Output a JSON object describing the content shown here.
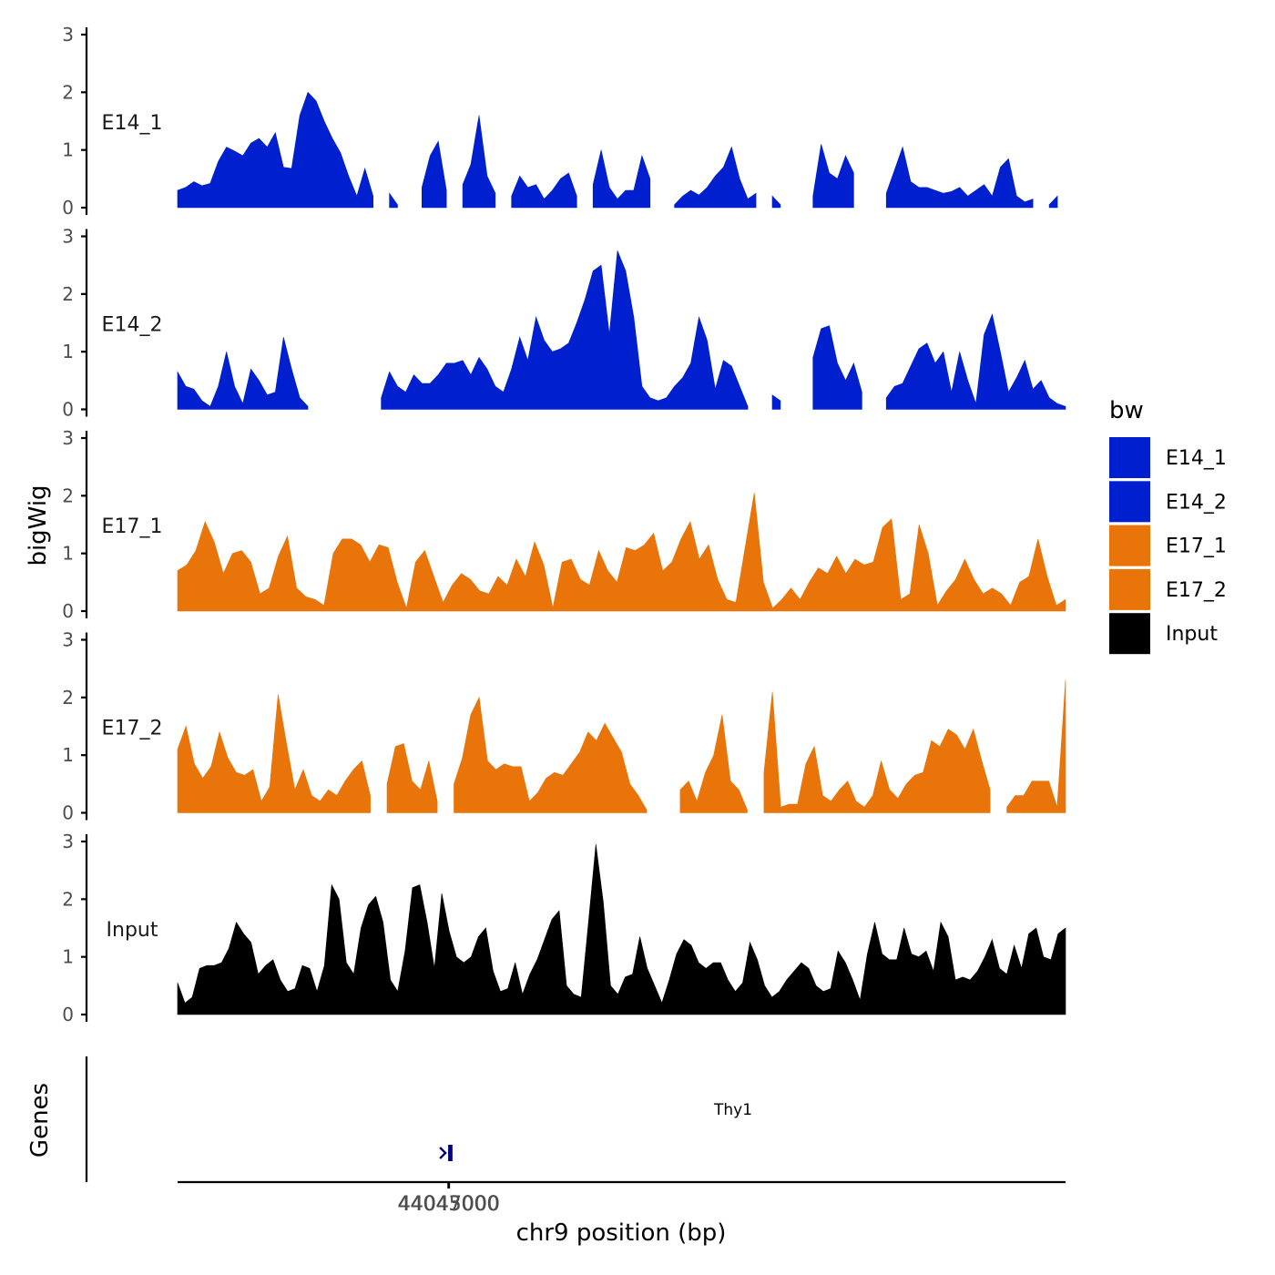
{
  "chart_data": {
    "type": "area",
    "chromosome": "chr9",
    "xlabel": "chr9 position (bp)",
    "ylabel": "bigWig",
    "genes_label": "Genes",
    "xlim": [
      42219000,
      48199000
    ],
    "ylim": [
      0,
      3
    ],
    "x_ticks": [
      {
        "value": 44043000,
        "label": "44043000"
      },
      {
        "value": 44045000,
        "label": "44045000"
      },
      {
        "value": 44047000,
        "label": "44047000"
      }
    ],
    "y_ticks": [
      {
        "value": 0,
        "label": "0"
      },
      {
        "value": 1,
        "label": "1"
      },
      {
        "value": 2,
        "label": "2"
      },
      {
        "value": 3,
        "label": "3"
      }
    ],
    "legend": {
      "title": "bw",
      "entries": [
        {
          "label": "E14_1",
          "color": "#0020D0"
        },
        {
          "label": "E14_2",
          "color": "#0020D0"
        },
        {
          "label": "E17_1",
          "color": "#E8740A"
        },
        {
          "label": "E17_2",
          "color": "#E8740A"
        },
        {
          "label": "Input",
          "color": "#000000"
        }
      ]
    },
    "series": [
      {
        "name": "E14_1",
        "color": "#0020D0",
        "x_start": 42219000,
        "x_end": 48199000,
        "values": [
          0.3,
          0.35,
          0.45,
          0.38,
          0.42,
          0.8,
          1.05,
          0.98,
          0.9,
          1.12,
          1.2,
          1.05,
          1.3,
          0.7,
          0.68,
          1.6,
          2.0,
          1.85,
          1.5,
          1.2,
          0.95,
          0.55,
          0.2,
          0.68,
          0.2,
          null,
          0.25,
          0.05,
          null,
          null,
          0.35,
          0.9,
          1.15,
          0.3,
          null,
          0.4,
          0.75,
          1.6,
          0.55,
          0.25,
          null,
          0.2,
          0.55,
          0.35,
          0.4,
          0.15,
          0.3,
          0.5,
          0.6,
          0.2,
          null,
          0.4,
          1.0,
          0.35,
          0.15,
          0.3,
          0.3,
          0.9,
          0.5,
          null,
          null,
          0.05,
          0.2,
          0.3,
          0.22,
          0.35,
          0.55,
          0.7,
          1.05,
          0.5,
          0.15,
          0.25,
          null,
          0.2,
          0.05,
          null,
          null,
          null,
          0.2,
          1.1,
          0.6,
          0.5,
          0.9,
          0.6,
          null,
          null,
          null,
          0.25,
          0.65,
          1.05,
          0.45,
          0.35,
          0.35,
          0.3,
          0.25,
          0.28,
          0.35,
          0.2,
          0.3,
          0.4,
          0.2,
          0.7,
          0.85,
          0.2,
          0.1,
          0.15,
          null,
          0.05,
          0.2,
          null
        ]
      },
      {
        "name": "E14_2",
        "color": "#0020D0",
        "x_start": 42219000,
        "x_end": 48199000,
        "values": [
          0.65,
          0.4,
          0.35,
          0.15,
          0.05,
          0.4,
          1.0,
          0.4,
          0.1,
          0.7,
          0.5,
          0.25,
          0.3,
          1.25,
          0.7,
          0.2,
          0.05,
          null,
          null,
          null,
          null,
          null,
          null,
          null,
          null,
          0.2,
          0.65,
          0.4,
          0.3,
          0.6,
          0.45,
          0.45,
          0.6,
          0.8,
          0.8,
          0.85,
          0.6,
          0.9,
          0.7,
          0.4,
          0.3,
          0.7,
          1.25,
          0.85,
          1.6,
          1.2,
          1.0,
          1.05,
          1.15,
          1.5,
          1.9,
          2.4,
          2.5,
          1.3,
          2.75,
          2.4,
          1.6,
          0.4,
          0.2,
          0.15,
          0.2,
          0.4,
          0.55,
          0.8,
          1.6,
          1.2,
          0.35,
          0.85,
          0.75,
          0.4,
          0.05,
          null,
          null,
          0.25,
          0.15,
          null,
          null,
          null,
          0.9,
          1.4,
          1.45,
          0.8,
          0.5,
          0.8,
          0.3,
          null,
          null,
          0.2,
          0.4,
          0.45,
          0.75,
          1.05,
          1.15,
          0.8,
          1.0,
          0.3,
          1.0,
          0.5,
          0.1,
          1.3,
          1.65,
          1.0,
          0.3,
          0.55,
          0.85,
          0.35,
          0.5,
          0.2,
          0.1,
          0.05
        ]
      },
      {
        "name": "E17_1",
        "color": "#E8740A",
        "x_start": 42219000,
        "x_end": 48199000,
        "values": [
          0.7,
          0.8,
          1.05,
          1.55,
          1.2,
          0.65,
          1.0,
          1.05,
          0.85,
          0.3,
          0.4,
          0.95,
          1.3,
          0.4,
          0.25,
          0.2,
          0.1,
          1.0,
          1.25,
          1.25,
          1.15,
          0.85,
          1.15,
          1.1,
          0.5,
          0.05,
          0.85,
          1.05,
          0.6,
          0.15,
          0.45,
          0.65,
          0.55,
          0.35,
          0.3,
          0.6,
          0.45,
          0.9,
          0.6,
          1.2,
          0.8,
          0.05,
          0.85,
          0.9,
          0.55,
          0.45,
          1.05,
          0.7,
          0.5,
          1.1,
          1.05,
          1.15,
          1.35,
          0.7,
          0.85,
          1.25,
          1.55,
          0.9,
          1.15,
          0.55,
          0.2,
          0.15,
          1.1,
          2.05,
          0.5,
          0.05,
          0.2,
          0.4,
          0.2,
          0.5,
          0.75,
          0.65,
          0.95,
          0.65,
          0.9,
          0.8,
          0.85,
          1.45,
          1.6,
          0.2,
          0.3,
          1.5,
          1.0,
          0.1,
          0.35,
          0.55,
          0.9,
          0.55,
          0.3,
          0.4,
          0.3,
          0.1,
          0.5,
          0.6,
          1.25,
          0.6,
          0.1,
          0.2
        ]
      },
      {
        "name": "E17_2",
        "color": "#E8740A",
        "x_start": 42219000,
        "x_end": 48199000,
        "values": [
          1.1,
          1.5,
          0.85,
          0.6,
          0.8,
          1.4,
          0.95,
          0.7,
          0.65,
          0.75,
          0.2,
          0.45,
          2.05,
          1.2,
          0.4,
          0.75,
          0.3,
          0.2,
          0.4,
          0.3,
          0.55,
          0.75,
          0.9,
          0.3,
          null,
          0.5,
          1.15,
          1.2,
          0.55,
          0.4,
          0.9,
          0.2,
          null,
          0.5,
          0.95,
          1.7,
          2.0,
          0.9,
          0.75,
          0.85,
          0.8,
          0.8,
          0.2,
          0.35,
          0.6,
          0.7,
          0.65,
          0.85,
          1.05,
          1.4,
          1.25,
          1.55,
          1.3,
          1.05,
          0.5,
          0.3,
          0.05,
          null,
          null,
          null,
          0.4,
          0.55,
          0.2,
          0.7,
          1.0,
          1.7,
          0.55,
          0.4,
          0.05,
          null,
          0.7,
          2.1,
          0.1,
          0.15,
          0.15,
          0.85,
          1.15,
          0.3,
          0.2,
          0.4,
          0.55,
          0.2,
          0.1,
          0.3,
          0.9,
          0.4,
          0.25,
          0.5,
          0.65,
          0.7,
          1.25,
          1.15,
          1.45,
          1.35,
          1.1,
          1.45,
          0.9,
          0.4,
          null,
          0.1,
          0.3,
          0.3,
          0.55,
          0.55,
          0.55,
          0.1,
          2.3
        ]
      },
      {
        "name": "Input",
        "color": "#000000",
        "x_start": 42219000,
        "x_end": 48199000,
        "values": [
          0.55,
          0.2,
          0.3,
          0.8,
          0.85,
          0.85,
          0.9,
          1.15,
          1.6,
          1.4,
          1.25,
          0.7,
          0.85,
          0.95,
          0.6,
          0.4,
          0.45,
          0.85,
          0.8,
          0.4,
          0.85,
          2.25,
          2.0,
          0.9,
          0.7,
          1.5,
          1.9,
          2.05,
          1.6,
          0.6,
          0.4,
          1.1,
          2.2,
          2.25,
          1.6,
          0.8,
          2.1,
          1.45,
          1.0,
          0.9,
          1.0,
          1.35,
          1.5,
          0.75,
          0.4,
          0.45,
          0.9,
          0.35,
          0.7,
          0.95,
          1.3,
          1.65,
          1.8,
          0.5,
          0.35,
          0.3,
          1.6,
          2.95,
          1.95,
          0.5,
          0.35,
          0.65,
          0.7,
          1.35,
          0.8,
          0.5,
          0.2,
          0.6,
          1.05,
          1.3,
          1.2,
          0.9,
          0.8,
          0.9,
          0.9,
          0.6,
          0.4,
          0.55,
          1.25,
          0.95,
          0.5,
          0.3,
          0.4,
          0.6,
          0.75,
          0.9,
          0.8,
          0.5,
          0.4,
          0.45,
          1.1,
          0.9,
          0.6,
          0.25,
          1.05,
          1.6,
          1.05,
          0.95,
          0.95,
          1.5,
          1.05,
          1.0,
          1.1,
          0.75,
          1.6,
          1.35,
          0.6,
          0.65,
          0.6,
          0.75,
          1.0,
          1.3,
          0.8,
          0.7,
          1.2,
          0.8,
          1.4,
          1.5,
          1.0,
          0.95,
          1.4,
          1.5
        ]
      }
    ],
    "gene_tracks": [
      {
        "name": "Thy1",
        "color": "#000080",
        "start": 44041260,
        "end": 44048570,
        "strand": "+",
        "exons": [
          [
            44041260,
            44041380
          ],
          [
            44043620,
            44043700
          ],
          [
            44044250,
            44044600
          ],
          [
            44045600,
            44048570
          ]
        ]
      }
    ]
  }
}
